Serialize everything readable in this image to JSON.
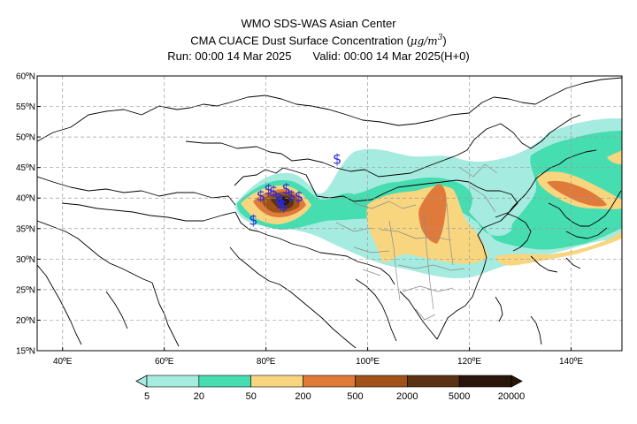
{
  "title": {
    "line1": "WMO SDS-WAS Asian Center",
    "line2_text": "CMA CUACE Dust Surface Concentration (",
    "line2_units_base": "μg/m",
    "line2_units_exp": "3",
    "line2_close": ")",
    "run_label": "Run: 00:00 14 Mar 2025",
    "valid_label": "Valid: 00:00 14 Mar 2025(H+0)"
  },
  "map": {
    "lon_range": [
      35,
      150
    ],
    "lat_range": [
      15,
      60
    ],
    "lat_ticks": [
      {
        "value": 60,
        "label": "60ºN"
      },
      {
        "value": 55,
        "label": "55ºN"
      },
      {
        "value": 50,
        "label": "50ºN"
      },
      {
        "value": 45,
        "label": "45ºN"
      },
      {
        "value": 40,
        "label": "40ºN"
      },
      {
        "value": 35,
        "label": "35ºN"
      },
      {
        "value": 30,
        "label": "30ºN"
      },
      {
        "value": 25,
        "label": "25ºN"
      },
      {
        "value": 20,
        "label": "20ºN"
      },
      {
        "value": 15,
        "label": "15ºN"
      }
    ],
    "lon_ticks": [
      {
        "value": 40,
        "label": "40ºE"
      },
      {
        "value": 60,
        "label": "60ºE"
      },
      {
        "value": 80,
        "label": "80ºE"
      },
      {
        "value": 100,
        "label": "100ºE"
      },
      {
        "value": 120,
        "label": "120ºE"
      },
      {
        "value": 140,
        "label": "140ºE"
      }
    ],
    "station_markers": [
      {
        "symbol": "$",
        "lon": 79,
        "lat": 40.5
      },
      {
        "symbol": "$",
        "lon": 80.5,
        "lat": 41.5
      },
      {
        "symbol": "$",
        "lon": 81.5,
        "lat": 41.2
      },
      {
        "symbol": "$",
        "lon": 82.5,
        "lat": 40
      },
      {
        "symbol": "$",
        "lon": 84,
        "lat": 41.6
      },
      {
        "symbol": "$",
        "lon": 85,
        "lat": 40.5
      },
      {
        "symbol": "$",
        "lon": 86.5,
        "lat": 40.3
      },
      {
        "symbol": "$",
        "lon": 83.5,
        "lat": 38.8
      },
      {
        "symbol": "$",
        "lon": 83,
        "lat": 39.8
      },
      {
        "symbol": "$",
        "lon": 82.8,
        "lat": 39.2
      },
      {
        "symbol": "$",
        "lon": 77.5,
        "lat": 36.5
      },
      {
        "symbol": "$",
        "lon": 94,
        "lat": 46.5
      }
    ],
    "colors": {
      "water": "#ffffff",
      "coast": "#000000",
      "borders": "#000000",
      "internal_borders": "#8a8a8a",
      "grid": "#9a9a9a",
      "marker": "#2a2adc"
    }
  },
  "colorbar": {
    "levels": [
      "5",
      "20",
      "50",
      "200",
      "500",
      "2000",
      "5000",
      "20000"
    ],
    "colors": [
      "#a6ebe0",
      "#46ddb0",
      "#f8d680",
      "#e07a3a",
      "#a05218",
      "#5c3214",
      "#2a160a"
    ]
  }
}
